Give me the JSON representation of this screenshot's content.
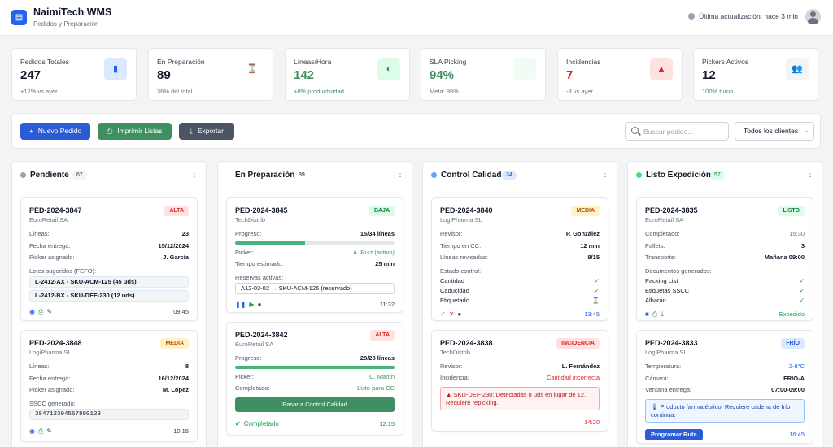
{
  "app": {
    "title": "NaimiTech WMS",
    "subtitle": "Pedidos y Preparación",
    "last_update": "Última actualización: hace 3 min"
  },
  "kpis": [
    {
      "label": "Pedidos Totales",
      "value": "247",
      "sub": "+12% vs ayer",
      "icon": "clipboard-icon"
    },
    {
      "label": "En Preparación",
      "value": "89",
      "sub": "36% del total",
      "icon": "hourglass-icon"
    },
    {
      "label": "Líneas/Hora",
      "value": "142",
      "sub": "+8% productividad",
      "icon": "gauge-icon"
    },
    {
      "label": "SLA Picking",
      "value": "94%",
      "sub": "Meta: 95%",
      "icon": "sla-icon"
    },
    {
      "label": "Incidencias",
      "value": "7",
      "sub": "-3 vs ayer",
      "icon": "warning-icon"
    },
    {
      "label": "Pickers Activos",
      "value": "12",
      "sub": "100% turno",
      "icon": "users-icon"
    }
  ],
  "toolbar": {
    "new_order": "Nuevo Pedido",
    "print_lists": "Imprimir Listas",
    "export": "Exportar",
    "search_placeholder": "Buscar pedido...",
    "client_filter": "Todos los clientes"
  },
  "columns": {
    "pending": {
      "title": "Pendiente",
      "count": "67",
      "cards": [
        {
          "id": "PED-2024-3847",
          "client": "EuroRetail SA",
          "priority": "ALTA",
          "rows": [
            {
              "label": "Líneas:",
              "value": "23"
            },
            {
              "label": "Fecha entrega:",
              "value": "15/12/2024"
            },
            {
              "label": "Picker asignado:",
              "value": "J. García"
            }
          ],
          "lots_label": "Lotes sugeridos (FEFO):",
          "lots": [
            "L-2412-AX - SKU-ACM-125 (45 uds)",
            "L-2412-BX - SKU-DEF-230 (12 uds)"
          ],
          "time": "09:45"
        },
        {
          "id": "PED-2024-3848",
          "client": "LogiPharma SL",
          "priority": "MEDIA",
          "rows": [
            {
              "label": "Líneas:",
              "value": "8"
            },
            {
              "label": "Fecha entrega:",
              "value": "16/12/2024"
            },
            {
              "label": "Picker asignado:",
              "value": "M. López"
            }
          ],
          "sscc_label": "SSCC generado:",
          "sscc": "384712304567890123",
          "time": "10:15"
        }
      ]
    },
    "preparing": {
      "title": "En Preparación",
      "count": "89",
      "cards": [
        {
          "id": "PED-2024-3845",
          "client": "TechDistrib",
          "priority": "BAJA",
          "progress_label": "Progreso:",
          "progress_value": "15/34 líneas",
          "progress_fraction": 0.44,
          "picker_label": "Picker:",
          "picker_value": "A. Ruiz (activo)",
          "est_label": "Tiempo estimado:",
          "est_value": "25 min",
          "reserve_label": "Reservas activas:",
          "reserve": "A12-03-02 → SKU-ACM-125 (reservado)",
          "time": "11:32"
        },
        {
          "id": "PED-2024-3842",
          "client": "EuroRetail SA",
          "priority": "ALTA",
          "progress_label": "Progreso:",
          "progress_value": "28/28 líneas",
          "progress_fraction": 1.0,
          "picker_label": "Picker:",
          "picker_value": "C. Martín",
          "status_label": "Completado:",
          "status_value": "Listo para CC",
          "action": "Pasar a Control Calidad",
          "done": "Completado",
          "time": "12:15"
        }
      ]
    },
    "qc": {
      "title": "Control Calidad",
      "count": "34",
      "cards": [
        {
          "id": "PED-2024-3840",
          "client": "LogiPharma SL",
          "priority": "MEDIA",
          "rows": [
            {
              "label": "Revisor:",
              "value": "P. González"
            },
            {
              "label": "Tiempo en CC:",
              "value": "12 min"
            },
            {
              "label": "Líneas revisadas:",
              "value": "8/15"
            }
          ],
          "checks_label": "Estado control:",
          "checks": [
            "Cantidad",
            "Caducidad",
            "Etiquetado"
          ],
          "time": "13:45"
        },
        {
          "id": "PED-2024-3838",
          "client": "TechDistrib",
          "priority": "INCIDENCIA",
          "rows": [
            {
              "label": "Revisor:",
              "value": "L. Fernández"
            },
            {
              "label": "Incidencia:",
              "value": "Cantidad incorrecta"
            }
          ],
          "alert": "SKU-DEF-230: Detectadas 8 uds en lugar de 12. Requiere repicking.",
          "time": "14:20"
        }
      ]
    },
    "ready": {
      "title": "Listo Expedición",
      "count": "57",
      "cards": [
        {
          "id": "PED-2024-3835",
          "client": "EuroRetail SA",
          "priority": "LISTO",
          "rows": [
            {
              "label": "Completado:",
              "value": "15:30"
            },
            {
              "label": "Pallets:",
              "value": "3"
            },
            {
              "label": "Transporte:",
              "value": "Mañana 09:00"
            }
          ],
          "docs_label": "Documentos generados:",
          "docs": [
            "Packing List",
            "Etiquetas SSCC",
            "Albarán"
          ],
          "status": "Expedido"
        },
        {
          "id": "PED-2024-3833",
          "client": "LogiPharma SL",
          "priority": "FRÍO",
          "rows": [
            {
              "label": "Temperatura:",
              "value": "2-8°C"
            },
            {
              "label": "Cámara:",
              "value": "FRIO-A"
            },
            {
              "label": "Ventana entrega:",
              "value": "07:00-09:00"
            }
          ],
          "info": "Producto farmacéutico. Requiere cadena de frío continua.",
          "action": "Programar Ruta",
          "time": "16:45"
        }
      ]
    }
  },
  "colors": {
    "primary": "#2563eb",
    "green": "#3f8f62",
    "dark": "#4b5563",
    "red": "#dc2626",
    "success": "#16a34a"
  }
}
